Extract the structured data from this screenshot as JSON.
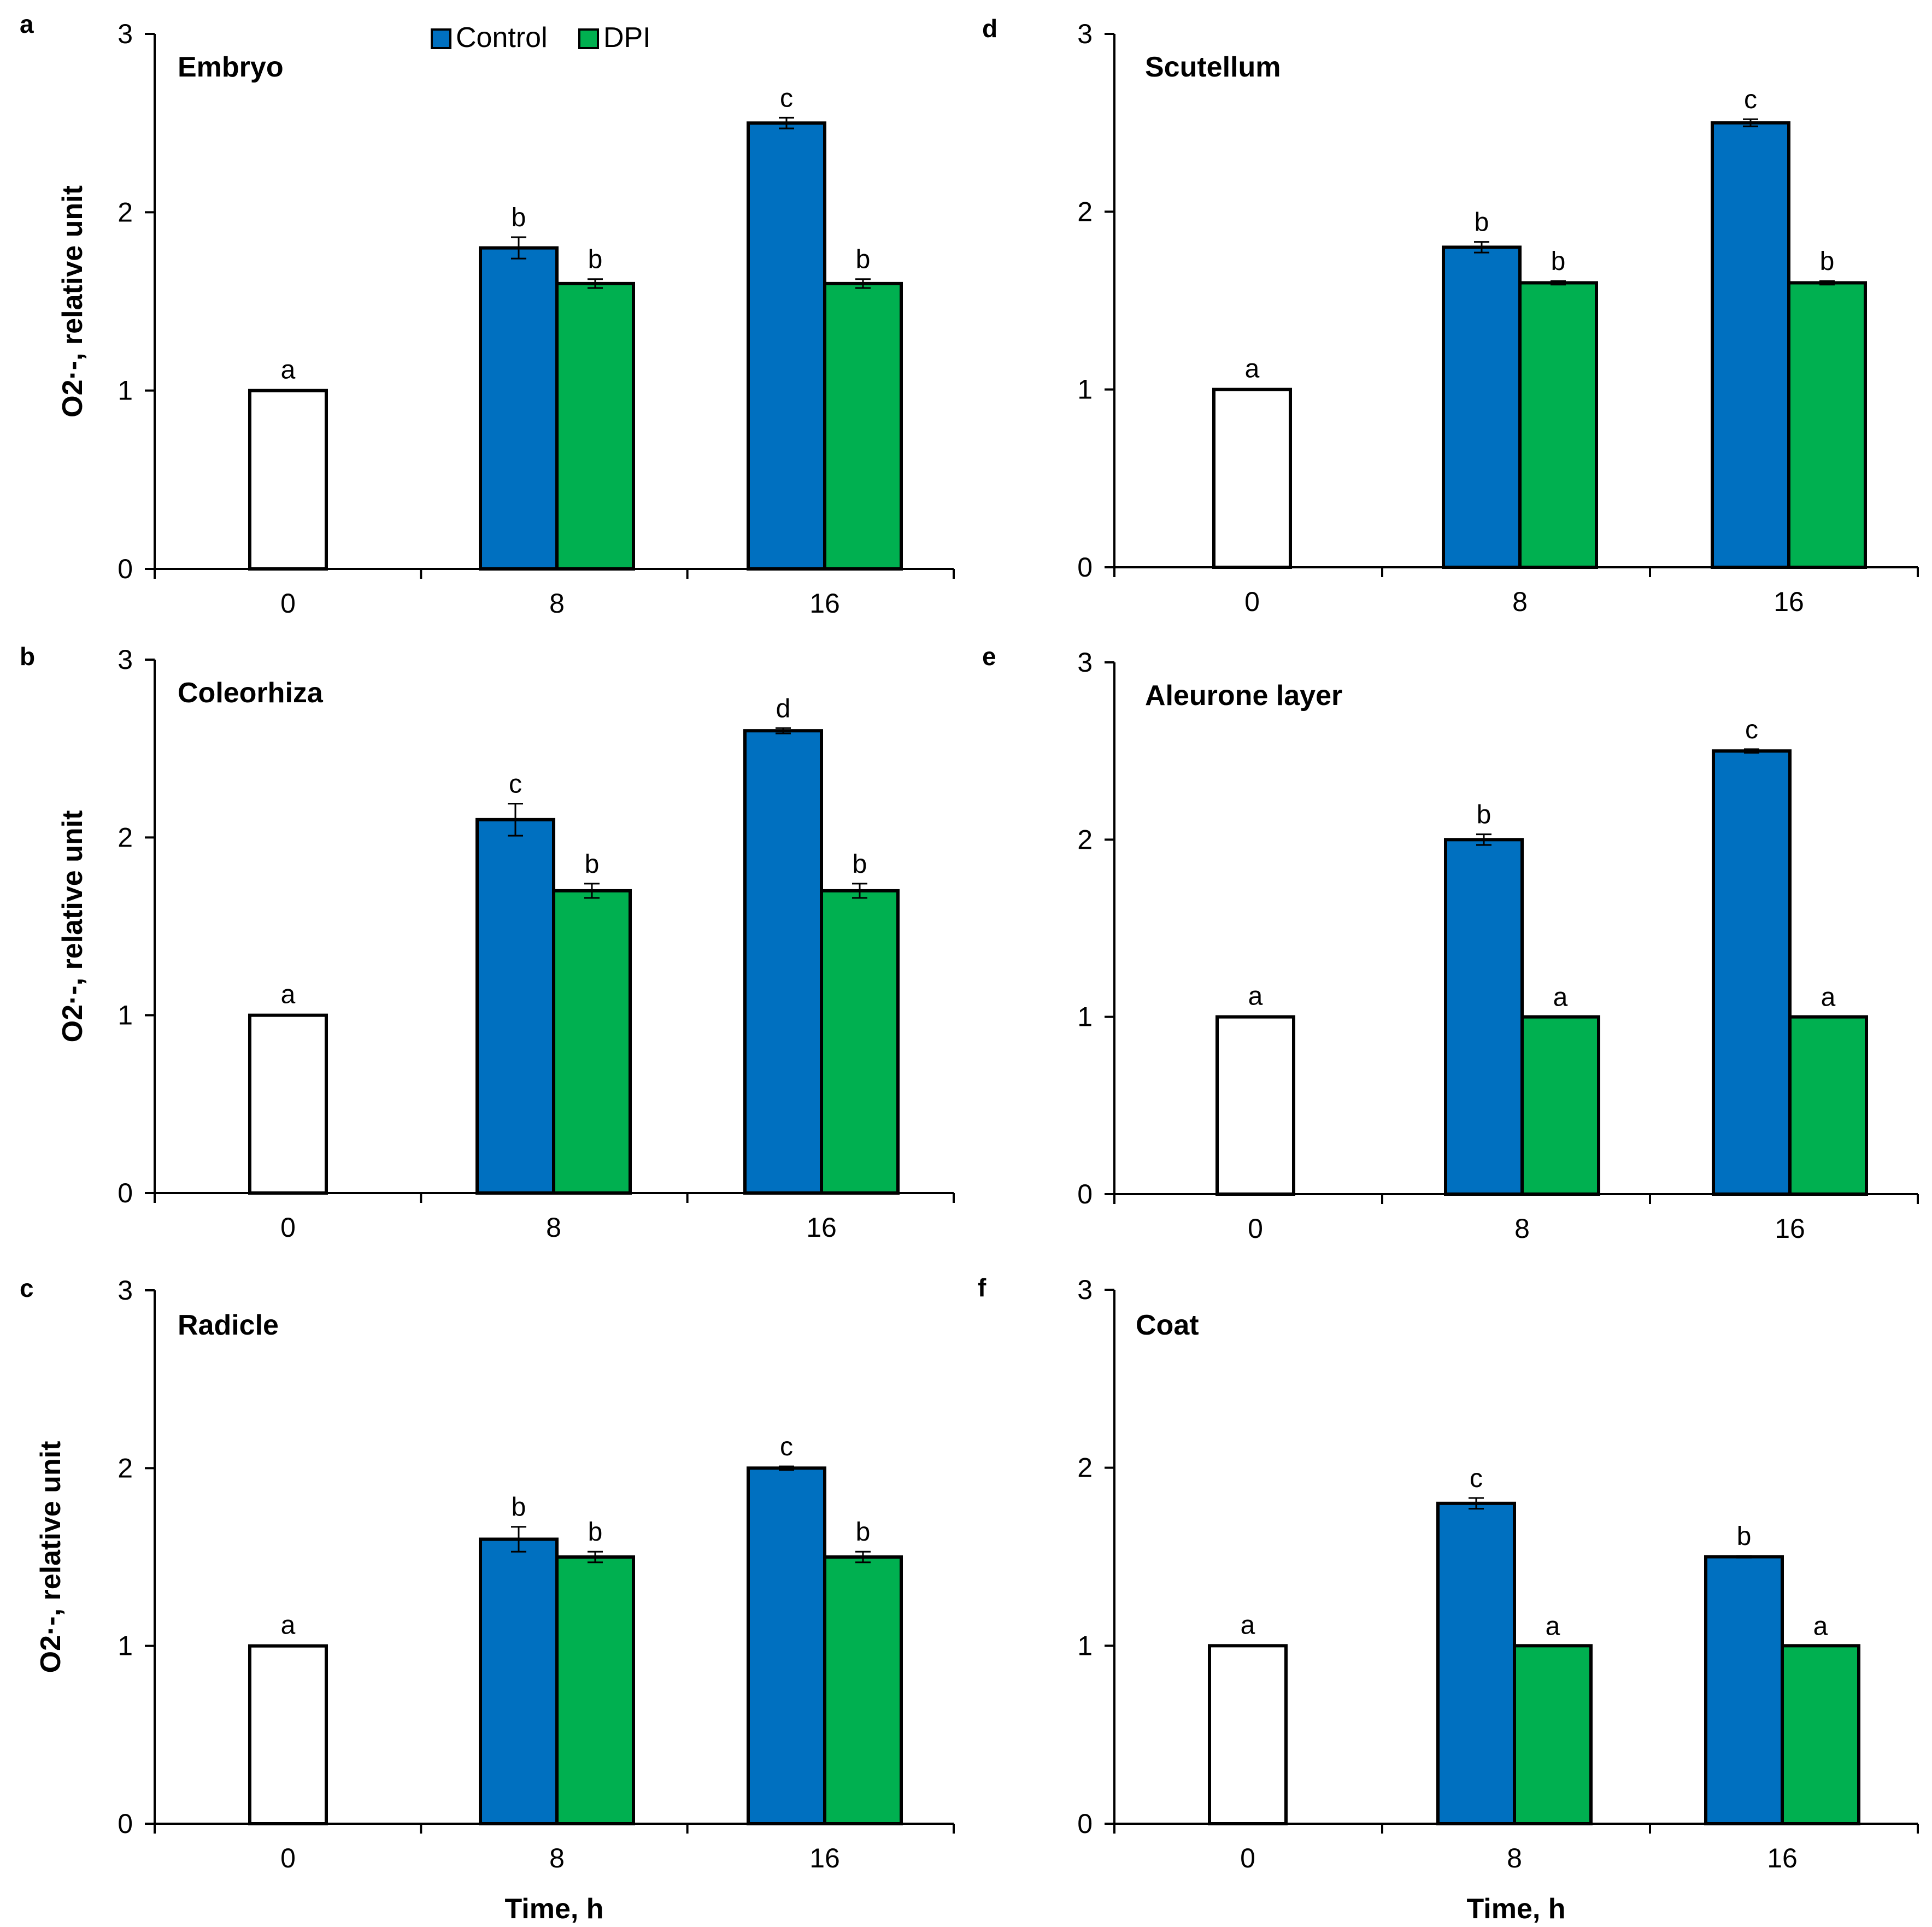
{
  "chart_data": [
    {
      "panel": "a",
      "type": "bar",
      "title": "Embryo",
      "categories": [
        "0",
        "8",
        "16"
      ],
      "ylim": [
        0,
        3
      ],
      "yticks": [
        "0",
        "1",
        "2",
        "3"
      ],
      "ylabel": "O2·-, relative unit",
      "xlabel": "",
      "baseline": {
        "value": 1,
        "err": 0,
        "label": "a"
      },
      "series": [
        {
          "name": "Control",
          "values": [
            null,
            1.8,
            2.5
          ],
          "errors": [
            null,
            0.06,
            0.03
          ],
          "labels": [
            "",
            "b",
            "c"
          ]
        },
        {
          "name": "DPI",
          "values": [
            null,
            1.6,
            1.6
          ],
          "errors": [
            null,
            0.025,
            0.025
          ],
          "labels": [
            "",
            "b",
            "b"
          ]
        }
      ]
    },
    {
      "panel": "b",
      "type": "bar",
      "title": "Coleorhiza",
      "categories": [
        "0",
        "8",
        "16"
      ],
      "ylim": [
        0,
        3
      ],
      "yticks": [
        "0",
        "1",
        "2",
        "3"
      ],
      "ylabel": "O2·-, relative unit",
      "xlabel": "",
      "baseline": {
        "value": 1,
        "err": 0,
        "label": "a"
      },
      "series": [
        {
          "name": "Control",
          "values": [
            null,
            2.1,
            2.6
          ],
          "errors": [
            null,
            0.09,
            0.015
          ],
          "labels": [
            "",
            "c",
            "d"
          ]
        },
        {
          "name": "DPI",
          "values": [
            null,
            1.7,
            1.7
          ],
          "errors": [
            null,
            0.04,
            0.04
          ],
          "labels": [
            "",
            "b",
            "b"
          ]
        }
      ]
    },
    {
      "panel": "c",
      "type": "bar",
      "title": "Radicle",
      "categories": [
        "0",
        "8",
        "16"
      ],
      "ylim": [
        0,
        3
      ],
      "yticks": [
        "0",
        "1",
        "2",
        "3"
      ],
      "ylabel": "O2·-, relative unit",
      "xlabel": "Time, h",
      "baseline": {
        "value": 1,
        "err": 0,
        "label": "a"
      },
      "series": [
        {
          "name": "Control",
          "values": [
            null,
            1.6,
            2.0
          ],
          "errors": [
            null,
            0.07,
            0.01
          ],
          "labels": [
            "",
            "b",
            "c"
          ]
        },
        {
          "name": "DPI",
          "values": [
            null,
            1.5,
            1.5
          ],
          "errors": [
            null,
            0.03,
            0.03
          ],
          "labels": [
            "",
            "b",
            "b"
          ]
        }
      ]
    },
    {
      "panel": "d",
      "type": "bar",
      "title": "Scutellum",
      "categories": [
        "0",
        "8",
        "16"
      ],
      "ylim": [
        0,
        3
      ],
      "yticks": [
        "0",
        "1",
        "2",
        "3"
      ],
      "ylabel": "",
      "xlabel": "",
      "baseline": {
        "value": 1,
        "err": 0,
        "label": "a"
      },
      "series": [
        {
          "name": "Control",
          "values": [
            null,
            1.8,
            2.5
          ],
          "errors": [
            null,
            0.03,
            0.02
          ],
          "labels": [
            "",
            "b",
            "c"
          ]
        },
        {
          "name": "DPI",
          "values": [
            null,
            1.6,
            1.6
          ],
          "errors": [
            null,
            0.01,
            0.01
          ],
          "labels": [
            "",
            "b",
            "b"
          ]
        }
      ]
    },
    {
      "panel": "e",
      "type": "bar",
      "title": "Aleurone layer",
      "categories": [
        "0",
        "8",
        "16"
      ],
      "ylim": [
        0,
        3
      ],
      "yticks": [
        "0",
        "1",
        "2",
        "3"
      ],
      "ylabel": "",
      "xlabel": "",
      "baseline": {
        "value": 1,
        "err": 0,
        "label": "a"
      },
      "series": [
        {
          "name": "Control",
          "values": [
            null,
            2.0,
            2.5
          ],
          "errors": [
            null,
            0.03,
            0.01
          ],
          "labels": [
            "",
            "b",
            "c"
          ]
        },
        {
          "name": "DPI",
          "values": [
            null,
            1.0,
            1.0
          ],
          "errors": [
            null,
            0,
            0
          ],
          "labels": [
            "",
            "a",
            "a"
          ]
        }
      ]
    },
    {
      "panel": "f",
      "type": "bar",
      "title": "Coat",
      "categories": [
        "0",
        "8",
        "16"
      ],
      "ylim": [
        0,
        3
      ],
      "yticks": [
        "0",
        "1",
        "2",
        "3"
      ],
      "ylabel": "",
      "xlabel": "Time, h",
      "baseline": {
        "value": 1,
        "err": 0,
        "label": "a"
      },
      "series": [
        {
          "name": "Control",
          "values": [
            null,
            1.8,
            1.5
          ],
          "errors": [
            null,
            0.03,
            0.005
          ],
          "labels": [
            "",
            "c",
            "b"
          ]
        },
        {
          "name": "DPI",
          "values": [
            null,
            1.0,
            1.0
          ],
          "errors": [
            null,
            0,
            0
          ],
          "labels": [
            "",
            "a",
            "a"
          ]
        }
      ]
    }
  ],
  "legend": {
    "entries": [
      {
        "name": "Control",
        "color": "#0070C0"
      },
      {
        "name": "DPI",
        "color": "#00B050"
      }
    ],
    "placement": "top"
  },
  "colors": {
    "control": "#0070C0",
    "dpi": "#00B050",
    "baseline": "#FFFFFF",
    "axis": "#000000"
  }
}
